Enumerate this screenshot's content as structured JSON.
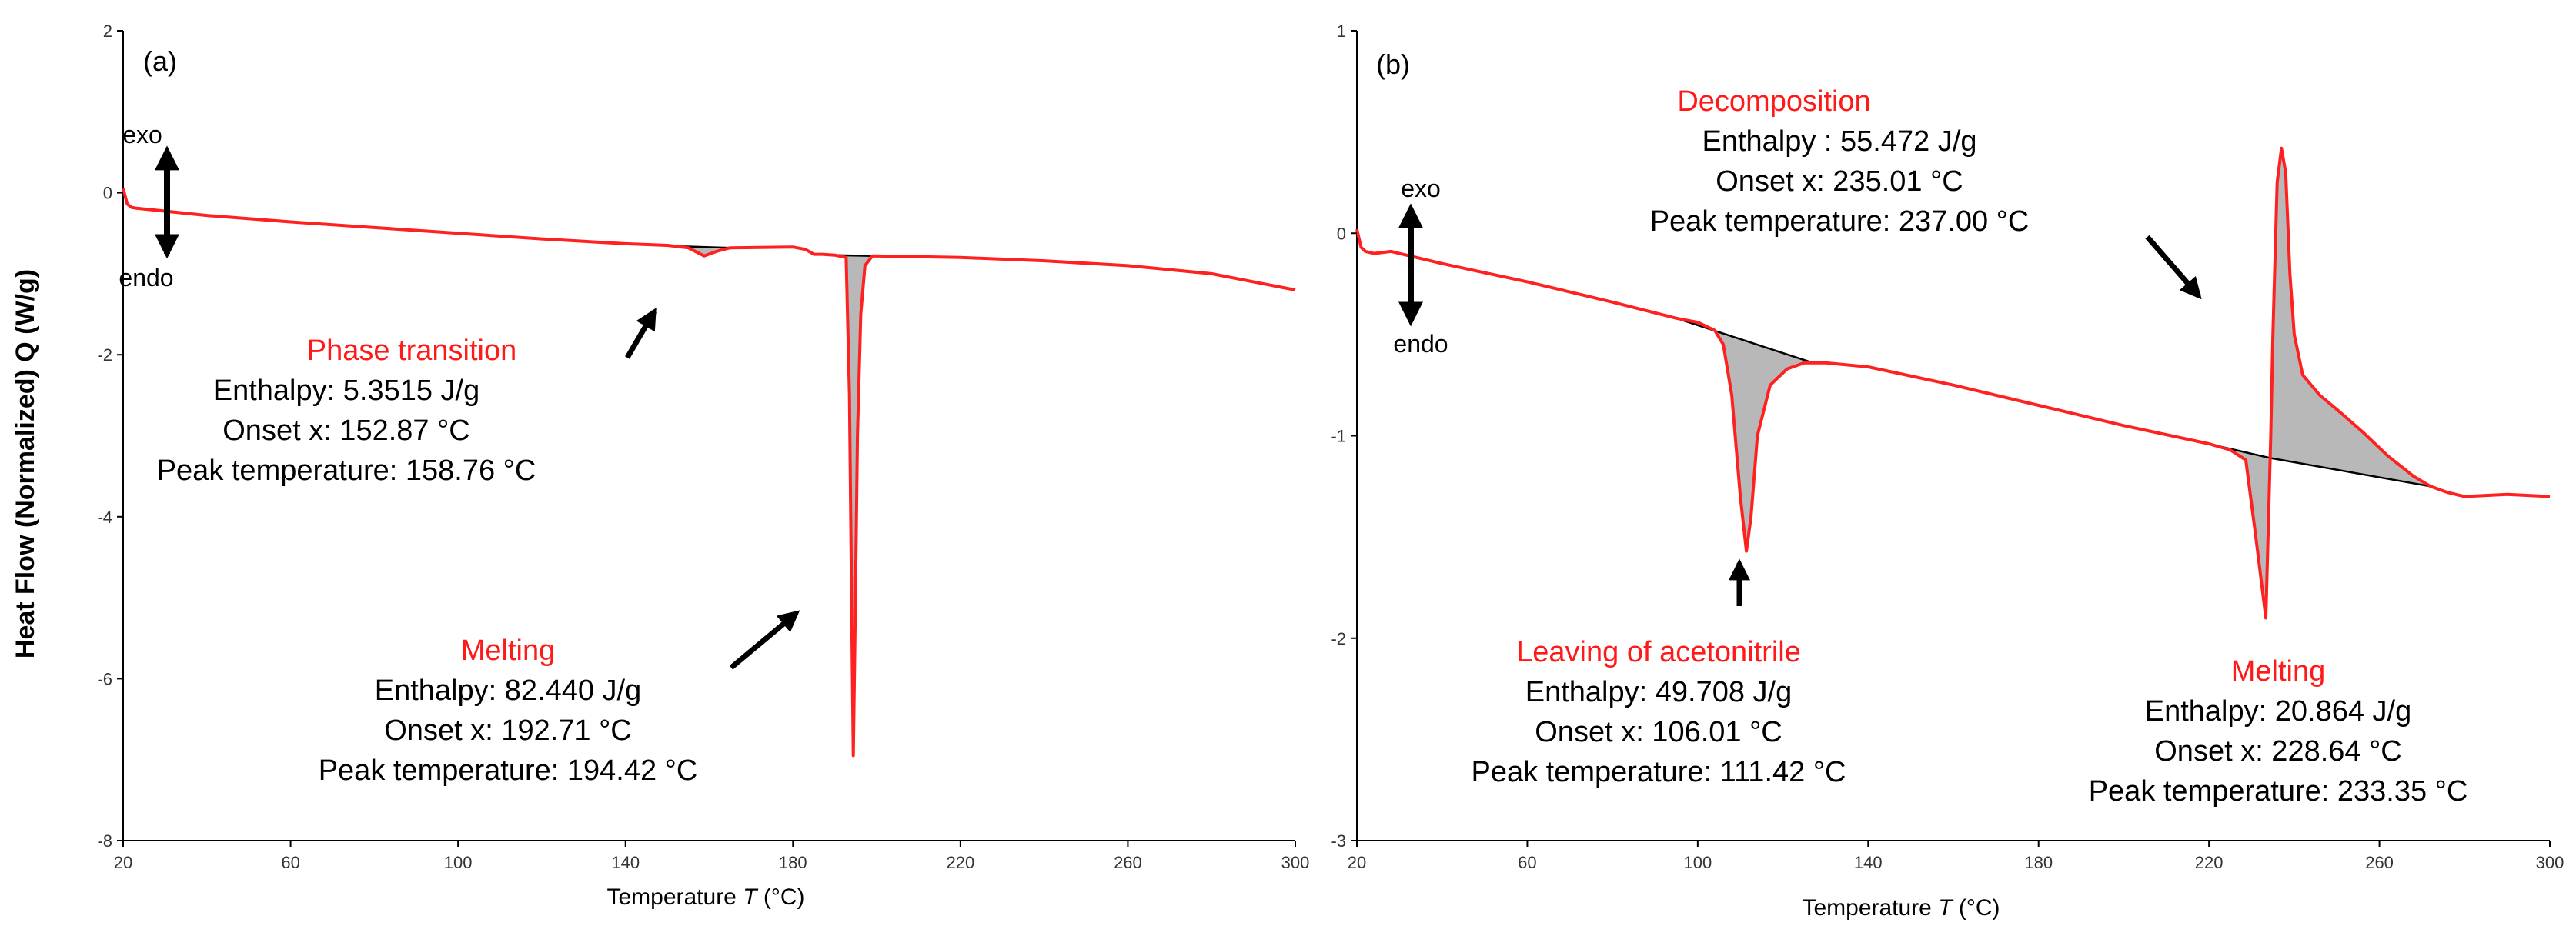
{
  "y_axis_label": "Heat Flow (Normalized) Q (W/g)",
  "colors": {
    "curve": "#ff2020",
    "baseline": "#000000",
    "fill": "#b8b8b8",
    "title": "#ff1a1a"
  },
  "chart_data": [
    {
      "panel": "(a)",
      "type": "line",
      "xlabel": "Temperature",
      "xlabel_var": "T",
      "xlabel_unit": "(°C)",
      "xlim": [
        20,
        300
      ],
      "ylim": [
        -8,
        2
      ],
      "xticks": [
        20,
        60,
        100,
        140,
        180,
        220,
        260,
        300
      ],
      "yticks": [
        2,
        0,
        -2,
        -4,
        -6,
        -8
      ],
      "exo_label": "exo",
      "endo_label": "endo",
      "curve": [
        [
          20,
          0.05
        ],
        [
          21,
          -0.14
        ],
        [
          22,
          -0.18
        ],
        [
          23,
          -0.19
        ],
        [
          40,
          -0.28
        ],
        [
          60,
          -0.36
        ],
        [
          80,
          -0.43
        ],
        [
          100,
          -0.5
        ],
        [
          120,
          -0.57
        ],
        [
          140,
          -0.63
        ],
        [
          150,
          -0.65
        ],
        [
          155,
          -0.68
        ],
        [
          158.76,
          -0.78
        ],
        [
          162,
          -0.72
        ],
        [
          165,
          -0.68
        ],
        [
          180,
          -0.67
        ],
        [
          183,
          -0.7
        ],
        [
          185,
          -0.76
        ],
        [
          187,
          -0.76
        ],
        [
          190,
          -0.77
        ],
        [
          192.71,
          -0.8
        ],
        [
          193.5,
          -2.5
        ],
        [
          194.1,
          -5.5
        ],
        [
          194.42,
          -6.95
        ],
        [
          194.8,
          -5.5
        ],
        [
          195.4,
          -3
        ],
        [
          196.2,
          -1.5
        ],
        [
          197.2,
          -0.9
        ],
        [
          199,
          -0.78
        ],
        [
          220,
          -0.8
        ],
        [
          240,
          -0.84
        ],
        [
          260,
          -0.9
        ],
        [
          280,
          -1.0
        ],
        [
          300,
          -1.2
        ]
      ],
      "peaks": [
        {
          "name": "Phase transition",
          "fill": [
            [
              152,
              -0.66
            ],
            [
              155,
              -0.68
            ],
            [
              158.76,
              -0.78
            ],
            [
              162,
              -0.72
            ],
            [
              165,
              -0.68
            ]
          ],
          "baseline": [
            [
              152,
              -0.66
            ],
            [
              165,
              -0.68
            ]
          ]
        },
        {
          "name": "Melting",
          "fill": [
            [
              190,
              -0.77
            ],
            [
              192.71,
              -0.8
            ],
            [
              193.5,
              -2.5
            ],
            [
              194.1,
              -5.5
            ],
            [
              194.42,
              -6.95
            ],
            [
              194.8,
              -5.5
            ],
            [
              195.4,
              -3
            ],
            [
              196.2,
              -1.5
            ],
            [
              197.2,
              -0.9
            ],
            [
              199,
              -0.78
            ]
          ],
          "baseline": [
            [
              190,
              -0.77
            ],
            [
              199,
              -0.78
            ]
          ]
        }
      ],
      "annotations": [
        {
          "title": "Phase transition",
          "lines": [
            "Enthalpy: 5.3515 J/g",
            "Onset x: 152.87 °C",
            "Peak temperature: 158.76 °C"
          ]
        },
        {
          "title": "Melting",
          "lines": [
            "Enthalpy: 82.440 J/g",
            "Onset x: 192.71 °C",
            "Peak temperature: 194.42 °C"
          ]
        }
      ]
    },
    {
      "panel": "(b)",
      "type": "line",
      "xlabel": "Temperature",
      "xlabel_var": "T",
      "xlabel_unit": "(°C)",
      "xlim": [
        20,
        300
      ],
      "ylim": [
        -3,
        1
      ],
      "xticks": [
        20,
        60,
        100,
        140,
        180,
        220,
        260,
        300
      ],
      "yticks": [
        1,
        0,
        -1,
        -2,
        -3
      ],
      "exo_label": "exo",
      "endo_label": "endo",
      "curve": [
        [
          20,
          0.02
        ],
        [
          21,
          -0.07
        ],
        [
          22,
          -0.09
        ],
        [
          24,
          -0.1
        ],
        [
          28,
          -0.09
        ],
        [
          40,
          -0.15
        ],
        [
          60,
          -0.24
        ],
        [
          80,
          -0.34
        ],
        [
          95,
          -0.42
        ],
        [
          100,
          -0.44
        ],
        [
          104,
          -0.48
        ],
        [
          106.01,
          -0.55
        ],
        [
          108,
          -0.8
        ],
        [
          110,
          -1.3
        ],
        [
          111.42,
          -1.57
        ],
        [
          112.5,
          -1.4
        ],
        [
          114,
          -1.0
        ],
        [
          117,
          -0.75
        ],
        [
          121,
          -0.67
        ],
        [
          125,
          -0.64
        ],
        [
          130,
          -0.64
        ],
        [
          140,
          -0.66
        ],
        [
          160,
          -0.75
        ],
        [
          180,
          -0.85
        ],
        [
          200,
          -0.95
        ],
        [
          220,
          -1.04
        ],
        [
          225,
          -1.07
        ],
        [
          228.64,
          -1.12
        ],
        [
          231,
          -1.5
        ],
        [
          233.35,
          -1.9
        ],
        [
          234,
          -1.4
        ],
        [
          234.5,
          -1.0
        ],
        [
          235.01,
          -0.5
        ],
        [
          236,
          0.25
        ],
        [
          237,
          0.42
        ],
        [
          238,
          0.3
        ],
        [
          239,
          -0.2
        ],
        [
          240,
          -0.5
        ],
        [
          242,
          -0.7
        ],
        [
          246,
          -0.8
        ],
        [
          250,
          -0.87
        ],
        [
          256,
          -0.98
        ],
        [
          262,
          -1.1
        ],
        [
          268,
          -1.2
        ],
        [
          272,
          -1.25
        ],
        [
          276,
          -1.28
        ],
        [
          280,
          -1.3
        ],
        [
          290,
          -1.29
        ],
        [
          300,
          -1.3
        ]
      ],
      "peaks": [
        {
          "name": "Leaving of acetonitrile",
          "fill": [
            [
              95,
              -0.42
            ],
            [
              100,
              -0.44
            ],
            [
              104,
              -0.48
            ],
            [
              106.01,
              -0.55
            ],
            [
              108,
              -0.8
            ],
            [
              110,
              -1.3
            ],
            [
              111.42,
              -1.57
            ],
            [
              112.5,
              -1.4
            ],
            [
              114,
              -1.0
            ],
            [
              117,
              -0.75
            ],
            [
              121,
              -0.67
            ],
            [
              125,
              -0.64
            ],
            [
              127,
              -0.64
            ]
          ],
          "baseline": [
            [
              95,
              -0.42
            ],
            [
              127,
              -0.64
            ]
          ]
        },
        {
          "name": "Melting",
          "fill": [
            [
              222,
              -1.05
            ],
            [
              225,
              -1.07
            ],
            [
              228.64,
              -1.12
            ],
            [
              231,
              -1.5
            ],
            [
              233.35,
              -1.9
            ],
            [
              234,
              -1.4
            ],
            [
              234.4,
              -1.11
            ]
          ],
          "baseline": [
            [
              222,
              -1.05
            ],
            [
              234.4,
              -1.11
            ]
          ]
        },
        {
          "name": "Decomposition",
          "fill": [
            [
              234.4,
              -1.11
            ],
            [
              235.01,
              -0.5
            ],
            [
              236,
              0.25
            ],
            [
              237,
              0.42
            ],
            [
              238,
              0.3
            ],
            [
              239,
              -0.2
            ],
            [
              240,
              -0.5
            ],
            [
              242,
              -0.7
            ],
            [
              246,
              -0.8
            ],
            [
              250,
              -0.87
            ],
            [
              256,
              -0.98
            ],
            [
              262,
              -1.1
            ],
            [
              268,
              -1.2
            ],
            [
              272,
              -1.25
            ]
          ],
          "baseline": [
            [
              234.4,
              -1.11
            ],
            [
              272,
              -1.25
            ]
          ]
        }
      ],
      "annotations": [
        {
          "title": "Decomposition",
          "lines": [
            "Enthalpy : 55.472 J/g",
            "Onset x: 235.01 °C",
            "Peak temperature: 237.00 °C"
          ]
        },
        {
          "title": "Leaving of acetonitrile",
          "lines": [
            "Enthalpy: 49.708 J/g",
            "Onset x: 106.01 °C",
            "Peak temperature: 111.42 °C"
          ]
        },
        {
          "title": "Melting",
          "lines": [
            "Enthalpy: 20.864 J/g",
            "Onset x: 228.64 °C",
            "Peak temperature: 233.35 °C"
          ]
        }
      ]
    }
  ]
}
